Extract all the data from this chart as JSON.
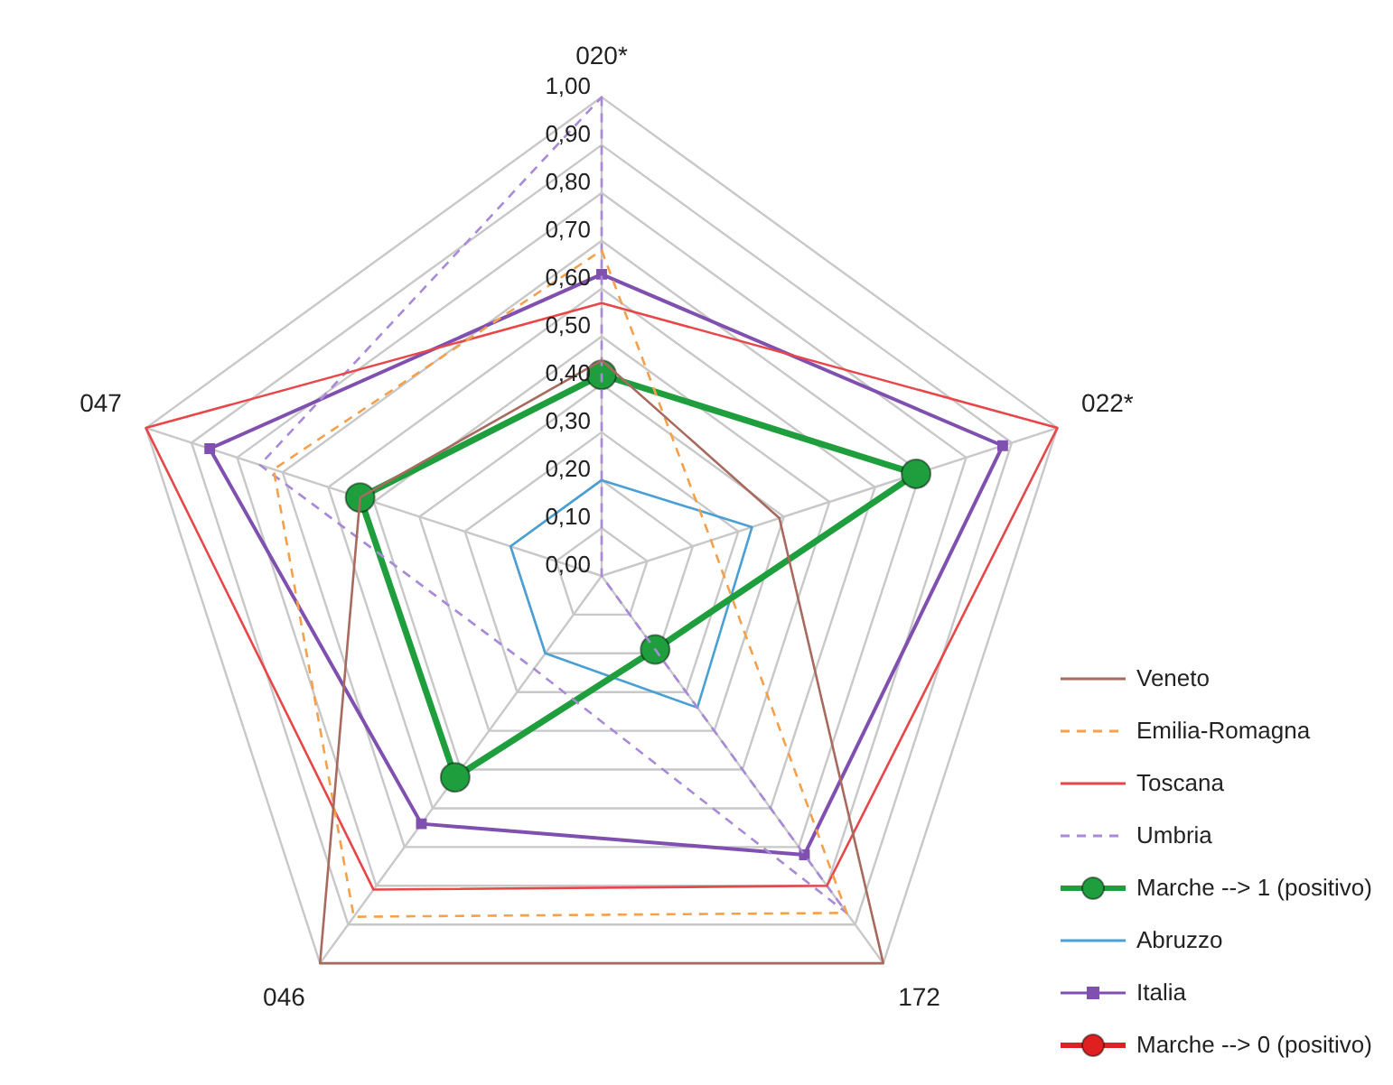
{
  "chart_data": {
    "type": "radar",
    "categories": [
      "020*",
      "022*",
      "172",
      "046",
      "047"
    ],
    "ylim": [
      0,
      1
    ],
    "yticks": [
      {
        "value": 0,
        "label": "0,00"
      },
      {
        "value": 0.1,
        "label": "0,10"
      },
      {
        "value": 0.2,
        "label": "0,20"
      },
      {
        "value": 0.3,
        "label": "0,30"
      },
      {
        "value": 0.4,
        "label": "0,40"
      },
      {
        "value": 0.5,
        "label": "0,50"
      },
      {
        "value": 0.6,
        "label": "0,60"
      },
      {
        "value": 0.7,
        "label": "0,70"
      },
      {
        "value": 0.8,
        "label": "0,80"
      },
      {
        "value": 0.9,
        "label": "0,90"
      },
      {
        "value": 1,
        "label": "1,00"
      }
    ],
    "grid": true,
    "legend": "bottom right",
    "series": [
      {
        "name": "Veneto",
        "color": "#a86a5e",
        "line_style": "solid",
        "marker": "none",
        "values": [
          0.45,
          0.39,
          1,
          1,
          0.53
        ]
      },
      {
        "name": "Emilia-Romagna",
        "color": "#f5a04a",
        "line_style": "dashed",
        "marker": "none",
        "values": [
          0.68,
          0.24,
          0.87,
          0.88,
          0.72
        ]
      },
      {
        "name": "Toscana",
        "color": "#e8474a",
        "line_style": "solid",
        "marker": "none",
        "values": [
          0.57,
          1,
          0.8,
          0.81,
          1
        ]
      },
      {
        "name": "Umbria",
        "color": "#a88ad8",
        "line_style": "dashed",
        "marker": "none",
        "values": [
          1,
          0,
          0.87,
          0.24,
          0.75
        ]
      },
      {
        "name": "Marche  --> 1 (positivo)",
        "color": "#1e9e3c",
        "line_style": "solid",
        "marker": "circle",
        "values": [
          0.42,
          0.69,
          0.19,
          0.52,
          0.53
        ]
      },
      {
        "name": "Abruzzo",
        "color": "#4a9fd5",
        "line_style": "solid",
        "marker": "none",
        "values": [
          0.2,
          0.33,
          0.34,
          0.2,
          0.2
        ]
      },
      {
        "name": "Italia",
        "color": "#8050b0",
        "line_style": "solid",
        "marker": "square",
        "values": [
          0.63,
          0.88,
          0.72,
          0.64,
          0.86
        ]
      },
      {
        "name": "Marche  --> 0 (positivo)",
        "color": "#e02020",
        "line_style": "solid",
        "marker": "circle",
        "values": [
          null,
          null,
          null,
          null,
          null
        ]
      }
    ]
  }
}
